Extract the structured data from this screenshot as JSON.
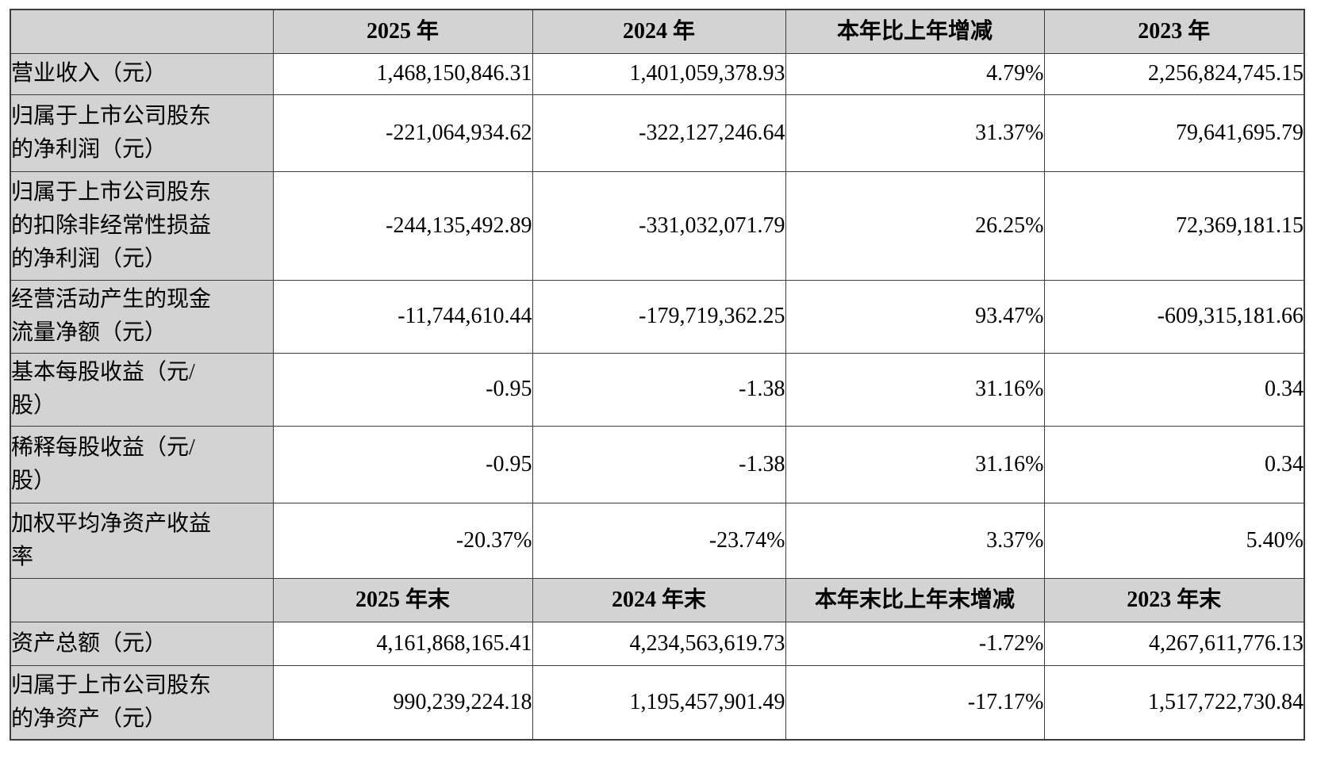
{
  "colors": {
    "header_bg": "#d3d3d3",
    "border": "#3d3d3d",
    "text": "#000000"
  },
  "table": {
    "top_headers": {
      "blank": "",
      "y2025": "2025 年",
      "y2024": "2024 年",
      "change": "本年比上年增减",
      "y2023": "2023 年"
    },
    "rows1": [
      {
        "label": "营业收入（元）",
        "y2025": "1,468,150,846.31",
        "y2024": "1,401,059,378.93",
        "change": "4.79%",
        "y2023": "2,256,824,745.15"
      },
      {
        "label": "归属于上市公司股东\n的净利润（元）",
        "y2025": "-221,064,934.62",
        "y2024": "-322,127,246.64",
        "change": "31.37%",
        "y2023": "79,641,695.79"
      },
      {
        "label": "归属于上市公司股东\n的扣除非经常性损益\n的净利润（元）",
        "y2025": "-244,135,492.89",
        "y2024": "-331,032,071.79",
        "change": "26.25%",
        "y2023": "72,369,181.15"
      },
      {
        "label": "经营活动产生的现金\n流量净额（元）",
        "y2025": "-11,744,610.44",
        "y2024": "-179,719,362.25",
        "change": "93.47%",
        "y2023": "-609,315,181.66"
      },
      {
        "label": "基本每股收益（元/\n股）",
        "y2025": "-0.95",
        "y2024": "-1.38",
        "change": "31.16%",
        "y2023": "0.34"
      },
      {
        "label": "稀释每股收益（元/\n股）",
        "y2025": "-0.95",
        "y2024": "-1.38",
        "change": "31.16%",
        "y2023": "0.34"
      },
      {
        "label": "加权平均净资产收益\n率",
        "y2025": "-20.37%",
        "y2024": "-23.74%",
        "change": "3.37%",
        "y2023": "5.40%"
      }
    ],
    "bottom_headers": {
      "blank": "",
      "y2025": "2025 年末",
      "y2024": "2024 年末",
      "change": "本年末比上年末增减",
      "y2023": "2023 年末"
    },
    "rows2": [
      {
        "label": "资产总额（元）",
        "y2025": "4,161,868,165.41",
        "y2024": "4,234,563,619.73",
        "change": "-1.72%",
        "y2023": "4,267,611,776.13"
      },
      {
        "label": "归属于上市公司股东\n的净资产（元）",
        "y2025": "990,239,224.18",
        "y2024": "1,195,457,901.49",
        "change": "-17.17%",
        "y2023": "1,517,722,730.84"
      }
    ]
  }
}
